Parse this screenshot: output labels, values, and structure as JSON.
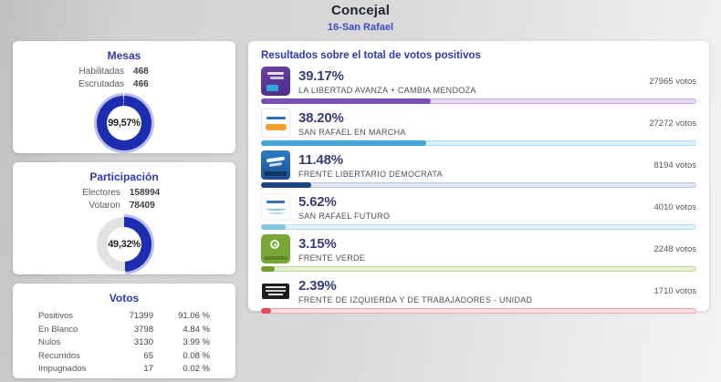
{
  "header": {
    "title": "Concejal",
    "subtitle": "16-San Rafael"
  },
  "mesas": {
    "title": "Mesas",
    "stats": [
      {
        "label": "Habilitadas",
        "value": "468"
      },
      {
        "label": "Escrutadas",
        "value": "466"
      }
    ],
    "percent_label": "99,57%",
    "percent": 99.57,
    "ring_color": "#1c2daf",
    "halo_color": "#b8bde9",
    "rest_color": "#e7e7e7"
  },
  "participacion": {
    "title": "Participación",
    "stats": [
      {
        "label": "Electores",
        "value": "158994"
      },
      {
        "label": "Votaron",
        "value": "78409"
      }
    ],
    "percent_label": "49,32%",
    "percent": 49.32,
    "ring_color": "#1c2daf",
    "halo_color": "#b8bde9",
    "rest_color": "#e2e2e2"
  },
  "votos": {
    "title": "Votos",
    "rows": [
      {
        "label": "Positivos",
        "value": "71399",
        "pct": "91.06 %"
      },
      {
        "label": "En Blanco",
        "value": "3798",
        "pct": "4.84 %"
      },
      {
        "label": "Nulos",
        "value": "3130",
        "pct": "3.99 %"
      },
      {
        "label": "Recurridos",
        "value": "65",
        "pct": "0.08 %"
      },
      {
        "label": "Impugnados",
        "value": "17",
        "pct": "0.02 %"
      }
    ]
  },
  "results": {
    "title": "Resultados sobre el total de votos positivos",
    "parties": [
      {
        "percent_label": "39.17%",
        "name": "LA LIBERTAD AVANZA + CAMBIA MENDOZA",
        "votes": "27965 votos",
        "percent": 39.17,
        "fill": "#7b4fb5",
        "track_bg": "#e6d7f3",
        "track_border": "#c6a7e4",
        "logo": "la-libertad-avanza-cambia-mendoza-logo"
      },
      {
        "percent_label": "38.20%",
        "name": "SAN RAFAEL EN MARCHA",
        "votes": "27272 votos",
        "percent": 38.2,
        "fill": "#43a5d8",
        "track_bg": "#daf0f9",
        "track_border": "#a9d9ee",
        "logo": "san-rafael-en-marcha-logo"
      },
      {
        "percent_label": "11.48%",
        "name": "FRENTE LIBERTARIO DEMOCRATA",
        "votes": "8194 votos",
        "percent": 11.48,
        "fill": "#1f4280",
        "track_bg": "#dfe6f1",
        "track_border": "#b7c7df",
        "logo": "frente-libertario-democrata-logo"
      },
      {
        "percent_label": "5.62%",
        "name": "SAN RAFAEL FUTURO",
        "votes": "4010 votos",
        "percent": 5.62,
        "fill": "#84c5e4",
        "track_bg": "#e0f1f9",
        "track_border": "#b9e0f1",
        "logo": "san-rafael-futuro-logo"
      },
      {
        "percent_label": "3.15%",
        "name": "FRENTE VERDE",
        "votes": "2248 votos",
        "percent": 3.15,
        "fill": "#6f9e29",
        "track_bg": "#e7efd2",
        "track_border": "#bed98f",
        "logo": "frente-verde-logo"
      },
      {
        "percent_label": "2.39%",
        "name": "FRENTE DE IZQUIERDA Y DE TRABAJADORES - UNIDAD",
        "votes": "1710 votos",
        "percent": 2.39,
        "fill": "#e8495a",
        "track_bg": "#fadfe1",
        "track_border": "#f2a6ac",
        "logo": "frente-de-izquierda-logo"
      }
    ]
  }
}
